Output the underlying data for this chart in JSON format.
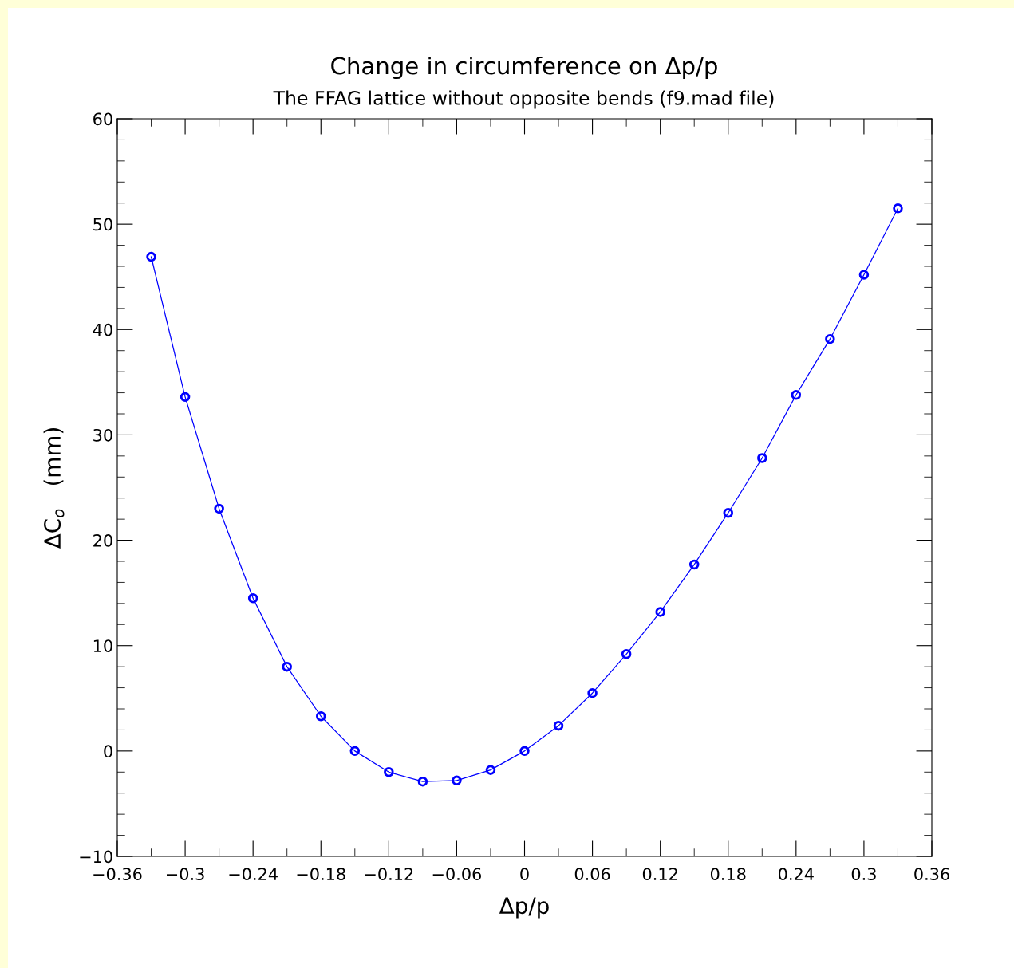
{
  "chart_data": {
    "type": "line",
    "title": "Change in circumference on Δp/p",
    "subtitle": "The FFAG lattice without opposite bends (f9.mad file)",
    "xlabel": "Δp/p",
    "ylabel": "ΔC$_{o}$   (mm)",
    "x": [
      -0.33,
      -0.3,
      -0.27,
      -0.24,
      -0.21,
      -0.18,
      -0.15,
      -0.12,
      -0.09,
      -0.06,
      -0.03,
      0,
      0.03,
      0.06,
      0.09,
      0.12,
      0.15,
      0.18,
      0.21,
      0.24,
      0.27,
      0.3,
      0.33
    ],
    "series": [
      {
        "color": "#0000ff",
        "values": [
          46.9,
          33.6,
          23.0,
          14.5,
          8.0,
          3.3,
          0,
          -2.0,
          -2.9,
          -2.8,
          -1.8,
          0,
          2.4,
          5.5,
          9.2,
          13.2,
          17.7,
          22.6,
          27.8,
          33.8,
          39.1,
          45.2,
          51.5
        ]
      }
    ],
    "xlim": [
      -0.36,
      0.36
    ],
    "xticks": [
      {
        "value": -0.36,
        "label": "−0.36"
      },
      {
        "value": -0.3,
        "label": "−0.3"
      },
      {
        "value": -0.24,
        "label": "−0.24"
      },
      {
        "value": -0.18,
        "label": "−0.18"
      },
      {
        "value": -0.12,
        "label": "−0.12"
      },
      {
        "value": -0.06,
        "label": "−0.06"
      },
      0,
      0.06,
      0.12,
      0.18,
      0.24,
      0.3,
      0.36
    ],
    "ylim": [
      -10,
      60
    ],
    "yticks": [
      {
        "value": -10,
        "label": "−10"
      },
      0,
      10,
      20,
      30,
      40,
      50,
      60
    ],
    "grid": false,
    "legend": false,
    "marker": "circle",
    "line_style": "solid"
  }
}
